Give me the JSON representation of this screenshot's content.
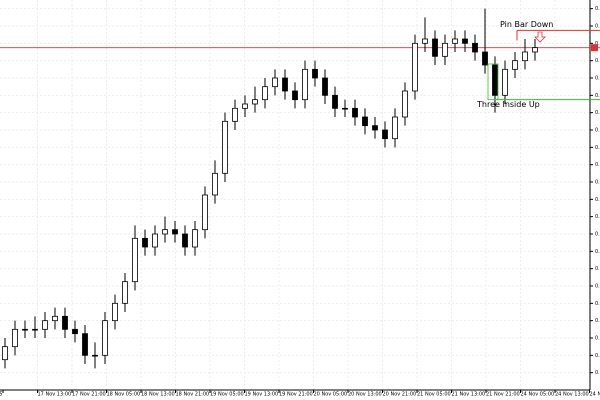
{
  "chart_data": {
    "type": "candlestick",
    "open": [
      0.6527,
      0.653,
      0.6534,
      0.6534,
      0.6534,
      0.6536,
      0.6537,
      0.6534,
      0.6533,
      0.6528,
      0.6528,
      0.6536,
      0.654,
      0.6545,
      0.6555,
      0.6553,
      0.6556,
      0.6557,
      0.6556,
      0.6553,
      0.6557,
      0.6565,
      0.657,
      0.6582,
      0.6585,
      0.6586,
      0.6587,
      0.659,
      0.6592,
      0.6589,
      0.6587,
      0.6594,
      0.6592,
      0.6588,
      0.6585,
      0.6585,
      0.6583,
      0.6581,
      0.658,
      0.6578,
      0.6583,
      0.6589,
      0.66,
      0.6601,
      0.6597,
      0.66,
      0.6601,
      0.66,
      0.6598,
      0.6595,
      0.6588,
      0.6594,
      0.6596,
      0.6598
    ],
    "high": [
      0.6532,
      0.6536,
      0.6536,
      0.6537,
      0.6538,
      0.6539,
      0.6539,
      0.6536,
      0.6535,
      0.6531,
      0.6538,
      0.6542,
      0.6547,
      0.6558,
      0.6557,
      0.6558,
      0.656,
      0.6559,
      0.6558,
      0.6559,
      0.6567,
      0.6573,
      0.6584,
      0.6587,
      0.6588,
      0.659,
      0.6592,
      0.6594,
      0.6594,
      0.6591,
      0.6596,
      0.6596,
      0.6594,
      0.659,
      0.6587,
      0.6587,
      0.6585,
      0.6583,
      0.6582,
      0.6585,
      0.6591,
      0.6602,
      0.6606,
      0.6603,
      0.6602,
      0.6603,
      0.6603,
      0.6602,
      0.6608,
      0.6597,
      0.6596,
      0.6598,
      0.6601,
      0.6601
    ],
    "low": [
      0.6525,
      0.6528,
      0.6532,
      0.6532,
      0.6532,
      0.6534,
      0.6532,
      0.6531,
      0.6526,
      0.6525,
      0.6526,
      0.6534,
      0.6538,
      0.6543,
      0.6551,
      0.6551,
      0.6554,
      0.6554,
      0.6551,
      0.6551,
      0.6555,
      0.6563,
      0.6568,
      0.658,
      0.6583,
      0.6584,
      0.6585,
      0.6588,
      0.6587,
      0.6585,
      0.6585,
      0.659,
      0.6586,
      0.6583,
      0.6583,
      0.6581,
      0.6579,
      0.6578,
      0.6576,
      0.6576,
      0.6581,
      0.6587,
      0.6598,
      0.6595,
      0.6595,
      0.6598,
      0.6598,
      0.6596,
      0.6593,
      0.6584,
      0.6586,
      0.6592,
      0.6594,
      0.6596
    ],
    "close": [
      0.653,
      0.6534,
      0.6534,
      0.6534,
      0.6536,
      0.6537,
      0.6534,
      0.6533,
      0.6528,
      0.6528,
      0.6536,
      0.654,
      0.6545,
      0.6555,
      0.6553,
      0.6556,
      0.6557,
      0.6556,
      0.6553,
      0.6557,
      0.6565,
      0.657,
      0.6582,
      0.6585,
      0.6586,
      0.6587,
      0.659,
      0.6592,
      0.6589,
      0.6587,
      0.6594,
      0.6592,
      0.6588,
      0.6585,
      0.6585,
      0.6583,
      0.6581,
      0.658,
      0.6578,
      0.6583,
      0.6589,
      0.66,
      0.6601,
      0.6597,
      0.66,
      0.6601,
      0.66,
      0.6598,
      0.6595,
      0.6588,
      0.6594,
      0.6596,
      0.6598,
      0.6599
    ],
    "x_labels": [
      "025",
      "17 Nov 13:00",
      "17 Nov 21:00",
      "18 Nov 05:00",
      "18 Nov 13:00",
      "18 Nov 21:00",
      "19 Nov 05:00",
      "19 Nov 13:00",
      "19 Nov 21:00",
      "20 Nov 05:00",
      "20 Nov 13:00",
      "20 Nov 21:00",
      "21 Nov 05:00",
      "21 Nov 13:00",
      "21 Nov 21:00",
      "24 Nov 05:00",
      "24 Nov 13:00",
      "24 Nov 21:00"
    ],
    "ylim": [
      0.652,
      0.661
    ],
    "yticks": [
      0.6524,
      0.6528,
      0.6532,
      0.6536,
      0.654,
      0.6544,
      0.6548,
      0.6552,
      0.6556,
      0.656,
      0.6564,
      0.6568,
      0.6572,
      0.6576,
      0.658,
      0.6584,
      0.6588,
      0.6592,
      0.6596,
      0.66,
      0.6604,
      0.6608
    ],
    "grid": true,
    "level": 0.6599,
    "level_color": "#e03030",
    "annotations": [
      {
        "text": "Pin Bar Down",
        "price": 0.6603,
        "color": "#e03030"
      },
      {
        "text": "Three Inside Up",
        "price": 0.6587,
        "color": "#30c030"
      }
    ]
  }
}
